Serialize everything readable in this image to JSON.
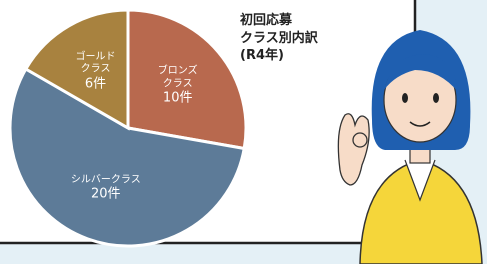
{
  "chart_data": {
    "type": "pie",
    "title": "初回応募\nクラス別内訳\n(R4年)",
    "categories": [
      "ブロンズ\nクラス",
      "シルバークラス",
      "ゴールド\nクラス"
    ],
    "values": [
      10,
      20,
      6
    ],
    "value_labels": [
      "10件",
      "20件",
      "6件"
    ],
    "colors": [
      "#b8694e",
      "#5d7b98",
      "#a8823f"
    ]
  }
}
